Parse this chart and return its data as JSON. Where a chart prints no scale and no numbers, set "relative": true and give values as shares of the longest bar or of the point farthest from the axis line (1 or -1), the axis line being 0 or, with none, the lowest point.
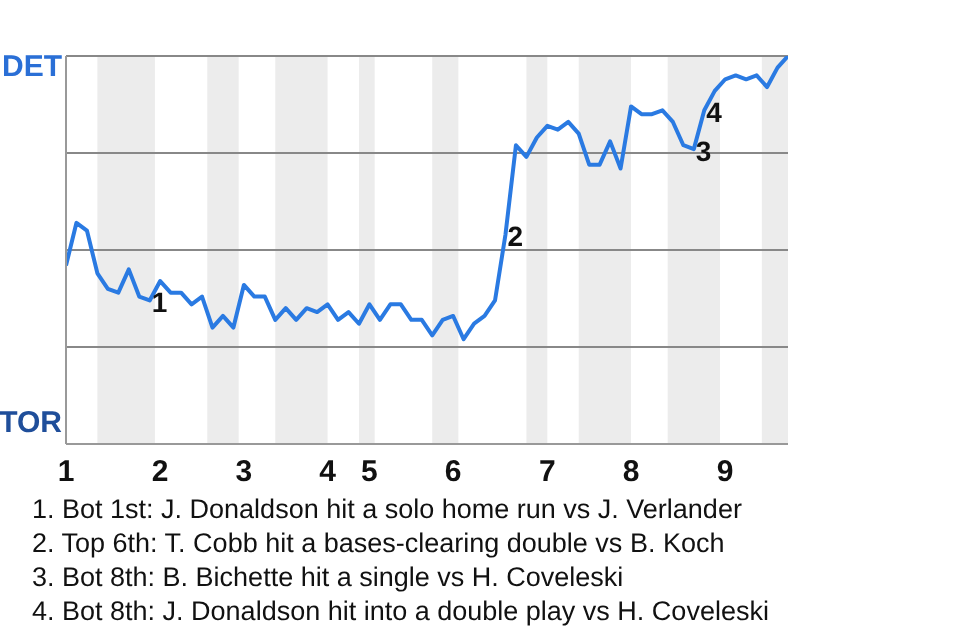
{
  "chart_data": {
    "type": "line",
    "relative": true,
    "categories": [
      "1",
      null,
      null,
      null,
      null,
      null,
      null,
      null,
      null,
      "2",
      null,
      null,
      null,
      null,
      null,
      null,
      null,
      "3",
      null,
      null,
      null,
      null,
      null,
      null,
      null,
      "4",
      null,
      null,
      null,
      "5",
      null,
      null,
      null,
      null,
      null,
      null,
      null,
      "6",
      null,
      null,
      null,
      null,
      null,
      null,
      null,
      null,
      "7",
      null,
      null,
      null,
      null,
      null,
      null,
      null,
      "8",
      null,
      null,
      null,
      null,
      null,
      null,
      null,
      null,
      "9",
      null,
      null,
      null,
      null,
      null,
      null
    ],
    "series": [
      {
        "color": "#2a7ae2",
        "values": [
          0.46,
          0.57,
          0.55,
          0.44,
          0.4,
          0.39,
          0.45,
          0.38,
          0.37,
          0.42,
          0.39,
          0.39,
          0.36,
          0.38,
          0.3,
          0.33,
          0.3,
          0.41,
          0.38,
          0.38,
          0.32,
          0.35,
          0.32,
          0.35,
          0.34,
          0.36,
          0.32,
          0.34,
          0.31,
          0.36,
          0.32,
          0.36,
          0.36,
          0.32,
          0.32,
          0.28,
          0.32,
          0.33,
          0.27,
          0.31,
          0.33,
          0.37,
          0.54,
          0.77,
          0.74,
          0.79,
          0.82,
          0.81,
          0.83,
          0.8,
          0.72,
          0.72,
          0.78,
          0.71,
          0.87,
          0.85,
          0.85,
          0.86,
          0.83,
          0.77,
          0.76,
          0.86,
          0.91,
          0.94,
          0.95,
          0.94,
          0.95,
          0.92,
          0.97,
          1.0
        ]
      }
    ],
    "grid": "y",
    "annotations": [
      "DET",
      "TOR",
      "1",
      "2",
      "3",
      "4",
      "1. Bot 1st: J. Donaldson hit a solo home run vs J. Verlander",
      "2. Top 6th: T. Cobb hit a bases-clearing double vs B. Koch",
      "3. Bot 8th: B. Bichette hit a single vs H. Coveleski",
      "4. Bot 8th: J. Donaldson hit into a double play vs H. Coveleski"
    ]
  }
}
